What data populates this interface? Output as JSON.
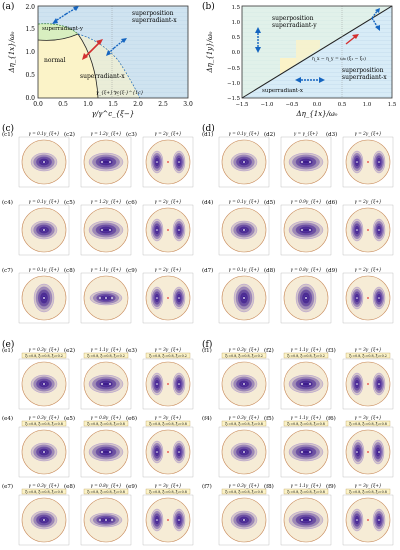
{
  "panel_a": {
    "tag": "(a)",
    "ylabel": "Δη_{1x}/ω₀",
    "xlabel": "γ/γ^c_{ξ−}",
    "xticks": [
      "0.0",
      "0.5",
      "1.0",
      "1.5",
      "2.0",
      "2.5",
      "3.0"
    ],
    "yticks": [
      "0.0",
      "0.5",
      "1.0",
      "1.5",
      "2.0"
    ],
    "regions": {
      "superposition": "superposition",
      "superradiant_x_top": "superradiant-x",
      "superradiant_y": "superradiant-y",
      "normal": "normal",
      "superradiant_x": "superradiant-x"
    },
    "curve_label_1": "γ_{ξ+}^c",
    "curve_label_2": "γ_{ξ-}^{1c}"
  },
  "panel_b": {
    "tag": "(b)",
    "ylabel": "Δη_{1y}/ω₀",
    "xlabel": "Δη_{1x}/ω₀",
    "xticks": [
      "−1.5",
      "−1.0",
      "−0.5",
      "0.0",
      "0.5",
      "1.0",
      "1.5"
    ],
    "yticks": [
      "−1.5",
      "−1.0",
      "−0.5",
      "0.0",
      "0.5",
      "1.0",
      "1.5"
    ],
    "regions": {
      "sup_y_line1": "superposition",
      "sup_y_line2": "superradiant-y",
      "sup_x_line1": "superposition",
      "sup_x_line2": "superradiant-x",
      "right_x": "superradiant-x",
      "formula": "η_x − η_y = ω₀ (ξ₁ − ξ₂)",
      "left_y": "superradiant-y"
    }
  },
  "group_c": {
    "tag": "(c)",
    "cells": [
      {
        "id": "(c1)",
        "title": "γ = 0.1γ_{ξ+}",
        "kind": "single"
      },
      {
        "id": "(c2)",
        "title": "γ = 1.2γ_{ξ+}",
        "kind": "double-h"
      },
      {
        "id": "(c3)",
        "title": "γ = 2γ_{ξ+}",
        "kind": "split-h"
      },
      {
        "id": "(c4)",
        "title": "γ = 0.1γ_{ξ+}",
        "kind": "single"
      },
      {
        "id": "(c5)",
        "title": "γ = 1.2γ_{ξ+}",
        "kind": "double-h"
      },
      {
        "id": "(c6)",
        "title": "γ = 2γ_{ξ+}",
        "kind": "split-h"
      },
      {
        "id": "(c7)",
        "title": "γ = 0.1γ_{ξ+}",
        "kind": "single-v"
      },
      {
        "id": "(c8)",
        "title": "γ = 1.1γ_{ξ+}",
        "kind": "triple"
      },
      {
        "id": "(c9)",
        "title": "γ = 2γ_{ξ+}",
        "kind": "split-h"
      }
    ]
  },
  "group_d": {
    "tag": "(d)",
    "cells": [
      {
        "id": "(d1)",
        "title": "γ = 0.1γ_{ξ+}",
        "kind": "single"
      },
      {
        "id": "(d2)",
        "title": "γ = γ_{ξ+}",
        "kind": "double-h"
      },
      {
        "id": "(d3)",
        "title": "γ = 2γ_{ξ+}",
        "kind": "split-h"
      },
      {
        "id": "(d4)",
        "title": "γ = 0.1γ_{ξ+}",
        "kind": "single"
      },
      {
        "id": "(d5)",
        "title": "γ = 0.9γ_{ξ+}",
        "kind": "double-h"
      },
      {
        "id": "(d6)",
        "title": "γ = 2γ_{ξ+}",
        "kind": "split-h"
      },
      {
        "id": "(d7)",
        "title": "γ = 0.1γ_{ξ+}",
        "kind": "single-v"
      },
      {
        "id": "(d8)",
        "title": "γ = 0.8γ_{ξ+}",
        "kind": "single-v"
      },
      {
        "id": "(d9)",
        "title": "γ = 2γ_{ξ+}",
        "kind": "split-h"
      }
    ]
  },
  "group_e": {
    "tag": "(e)",
    "cells": [
      {
        "id": "(e1)",
        "title": "γ = 0.3γ_{ξ+}",
        "kind": "single",
        "params": "ξ₁=0.8, ξ₂=0.8, ξ₃=0.2"
      },
      {
        "id": "(e2)",
        "title": "γ = 1.1γ_{ξ+}",
        "kind": "double-h",
        "params": "ξ₁=0.8, ξ₂=0.8, ξ₃=0.2"
      },
      {
        "id": "(e3)",
        "title": "γ = 3γ_{ξ+}",
        "kind": "split-h",
        "params": "ξ₁=0.8, ξ₂=0.8, ξ₃=0.2"
      },
      {
        "id": "(e4)",
        "title": "γ = 0.3γ_{ξ+}",
        "kind": "single",
        "params": "ξ₁=0.8, ξ₂=0.8, ξ₃=0.8"
      },
      {
        "id": "(e5)",
        "title": "γ = 0.8γ_{ξ+}",
        "kind": "double-h",
        "params": "ξ₁=0.8, ξ₂=0.8, ξ₃=0.8"
      },
      {
        "id": "(e6)",
        "title": "γ = 3γ_{ξ+}",
        "kind": "split-h",
        "params": "ξ₁=0.8, ξ₂=0.8, ξ₃=0.8"
      },
      {
        "id": "(e7)",
        "title": "γ = 0.3γ_{ξ+}",
        "kind": "single",
        "params": "ξ₁=0.8, ξ₂=0.8, ξ₃=0.8"
      },
      {
        "id": "(e8)",
        "title": "γ = 0.8γ_{ξ+}",
        "kind": "triple",
        "params": "ξ₁=0.8, ξ₂=0.8, ξ₃=0.8"
      },
      {
        "id": "(e9)",
        "title": "γ = 3γ_{ξ+}",
        "kind": "split-h",
        "params": "ξ₁=0.8, ξ₂=0.8, ξ₃=0.8"
      }
    ]
  },
  "group_f": {
    "tag": "(f)",
    "cells": [
      {
        "id": "(f1)",
        "title": "γ = 0.3γ_{ξ+}",
        "kind": "single",
        "params": "ξ₁=0.8, ξ₂=0.8, ξ₃=0.2"
      },
      {
        "id": "(f2)",
        "title": "γ = 1.1γ_{ξ+}",
        "kind": "double-h",
        "params": "ξ₁=0.8, ξ₂=0.8, ξ₃=0.2"
      },
      {
        "id": "(f3)",
        "title": "γ = 3γ_{ξ+}",
        "kind": "split-h",
        "params": "ξ₁=0.8, ξ₂=0.8, ξ₃=0.2"
      },
      {
        "id": "(f4)",
        "title": "γ = 0.3γ_{ξ+}",
        "kind": "single",
        "params": "ξ₁=0.8, ξ₂=0.8, ξ₃=0.8"
      },
      {
        "id": "(f5)",
        "title": "γ = 1.1γ_{ξ+}",
        "kind": "double-h",
        "params": "ξ₁=0.8, ξ₂=0.8, ξ₃=0.8"
      },
      {
        "id": "(f6)",
        "title": "γ = 3γ_{ξ+}",
        "kind": "split-v",
        "params": "ξ₁=0.8, ξ₂=0.8, ξ₃=0.8"
      },
      {
        "id": "(f7)",
        "title": "γ = 0.3γ_{ξ+}",
        "kind": "single",
        "params": "ξ₁=0.8, ξ₂=0.8, ξ₃=0.8"
      },
      {
        "id": "(f8)",
        "title": "γ = 1.1γ_{ξ+}",
        "kind": "double-h",
        "params": "ξ₁=0.8, ξ₂=0.8, ξ₃=0.8"
      },
      {
        "id": "(f9)",
        "title": "γ = 3γ_{ξ+}",
        "kind": "split-h",
        "params": "ξ₁=0.8, ξ₂=0.8, ξ₃=0.8"
      }
    ]
  },
  "colors": {
    "sky": "#cfe3f0",
    "sand": "#fbf3c8",
    "green": "#d8efc0",
    "disk_bg": "#f6ecd6",
    "disk_edge": "#c88a5a",
    "blob": "#3b1a8a",
    "arrow_blue": "#1565c0",
    "arrow_red": "#d32f2f"
  }
}
